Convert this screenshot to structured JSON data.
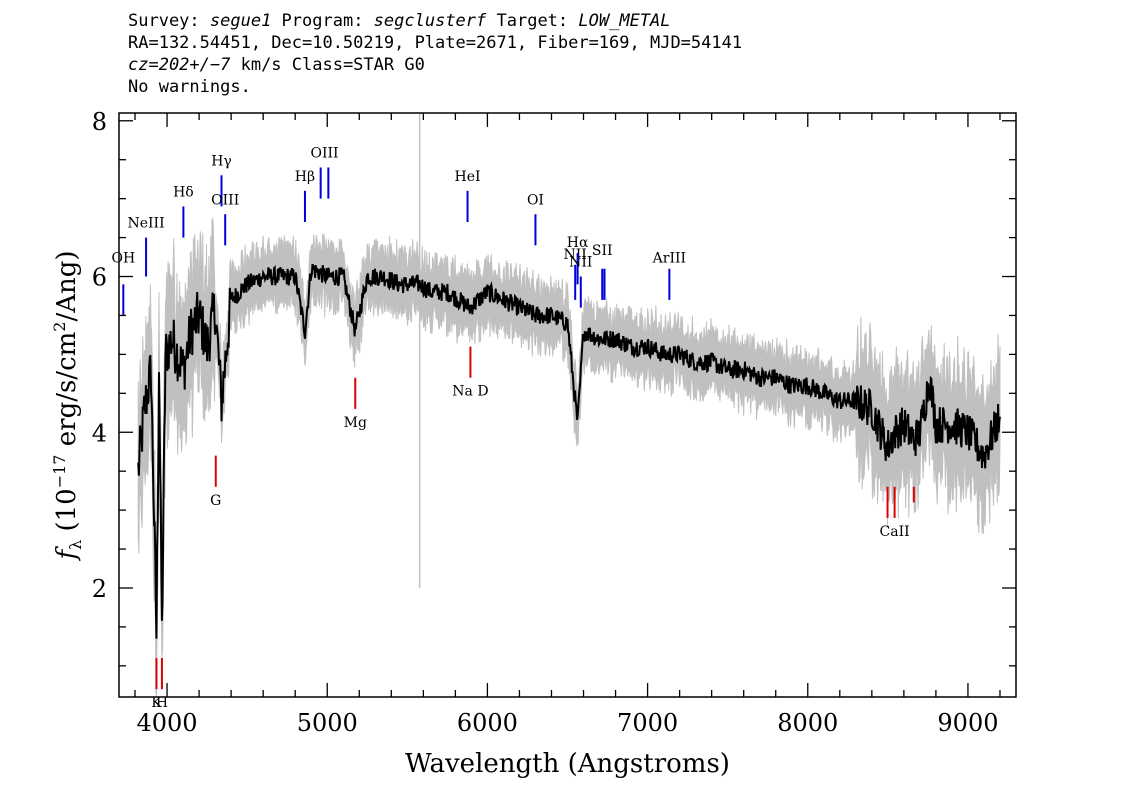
{
  "header": {
    "line1": {
      "survey_label": "Survey: ",
      "survey": "segue1",
      "program_label": " Program: ",
      "program": "segclusterf",
      "target_label": " Target: ",
      "target": "LOW_METAL"
    },
    "line2": "RA=132.54451, Dec=10.50219, Plate=2671, Fiber=169, MJD=54141",
    "line3": {
      "cz": "cz=202+/−7",
      "rest": " km/s Class=STAR G0"
    },
    "line4": "No warnings."
  },
  "chart_data": {
    "type": "line",
    "xlabel": "Wavelength (Angstroms)",
    "ylabel": "fλ (10^-17 erg/s/cm^2/Ang)",
    "xlim": [
      3700,
      9300
    ],
    "ylim": [
      0.6,
      8.1
    ],
    "xticks": [
      4000,
      5000,
      6000,
      7000,
      8000,
      9000
    ],
    "yticks": [
      2,
      4,
      6,
      8
    ],
    "colors": {
      "flux": "#000000",
      "error_band": "#c0c0c0",
      "emission": "#0000dd",
      "absorption": "#dd0000"
    },
    "series": [
      {
        "x": [
          3820,
          3860,
          3900,
          3934,
          3950,
          3968,
          3990,
          4030,
          4102,
          4150,
          4200,
          4250,
          4300,
          4340,
          4400,
          4500,
          4600,
          4700,
          4800,
          4861,
          4900,
          5000,
          5100,
          5175,
          5250,
          5350,
          5450,
          5577,
          5650,
          5750,
          5890,
          6000,
          6100,
          6200,
          6300,
          6400,
          6500,
          6563,
          6600,
          6700,
          6800,
          6900,
          7000,
          7100,
          7200,
          7300,
          7400,
          7500,
          7600,
          7700,
          7800,
          7900,
          8000,
          8100,
          8200,
          8300,
          8400,
          8498,
          8542,
          8600,
          8662,
          8700,
          8760,
          8800,
          8900,
          9000,
          9100,
          9200
        ],
        "y": [
          3.5,
          4.3,
          4.8,
          1.4,
          4.9,
          1.4,
          5.0,
          5.2,
          4.8,
          5.3,
          5.5,
          5.1,
          5.6,
          4.4,
          5.7,
          5.9,
          6.0,
          6.0,
          6.0,
          5.3,
          6.1,
          6.0,
          6.0,
          5.3,
          6.0,
          6.0,
          5.9,
          5.9,
          5.8,
          5.8,
          5.6,
          5.8,
          5.7,
          5.6,
          5.5,
          5.5,
          5.4,
          4.1,
          5.3,
          5.2,
          5.2,
          5.1,
          5.1,
          5.0,
          5.0,
          4.9,
          4.9,
          4.8,
          4.8,
          4.7,
          4.7,
          4.6,
          4.6,
          4.5,
          4.4,
          4.4,
          4.3,
          3.8,
          4.0,
          4.1,
          3.9,
          4.0,
          4.7,
          4.1,
          4.1,
          4.0,
          3.7,
          4.2
        ]
      }
    ],
    "lines": [
      {
        "label": "OH",
        "x": 3727,
        "kind": "emission"
      },
      {
        "label": "NeIII",
        "x": 3869,
        "kind": "emission"
      },
      {
        "label": "Hδ",
        "x": 4102,
        "kind": "emission"
      },
      {
        "label": "Hγ",
        "x": 4340,
        "kind": "emission"
      },
      {
        "label": "OIII",
        "x": 4363,
        "kind": "emission"
      },
      {
        "label": "Hβ",
        "x": 4861,
        "kind": "emission"
      },
      {
        "label": "OIII",
        "x": 4959,
        "kind": "emission"
      },
      {
        "label": "HeI",
        "x": 5876,
        "kind": "emission"
      },
      {
        "label": "OI",
        "x": 6300,
        "kind": "emission"
      },
      {
        "label": "NII",
        "x": 6548,
        "kind": "emission"
      },
      {
        "label": "Hα",
        "x": 6563,
        "kind": "emission"
      },
      {
        "label": "NII",
        "x": 6583,
        "kind": "emission"
      },
      {
        "label": "SII",
        "x": 6717,
        "kind": "emission"
      },
      {
        "label": "ArIII",
        "x": 7136,
        "kind": "emission"
      },
      {
        "label": "K",
        "x": 3934,
        "kind": "absorption"
      },
      {
        "label": "H",
        "x": 3968,
        "kind": "absorption"
      },
      {
        "label": "G",
        "x": 4304,
        "kind": "absorption"
      },
      {
        "label": "Mg",
        "x": 5175,
        "kind": "absorption"
      },
      {
        "label": "Na D",
        "x": 5894,
        "kind": "absorption"
      },
      {
        "label": "CaII",
        "x": 8542,
        "kind": "absorption"
      }
    ]
  }
}
